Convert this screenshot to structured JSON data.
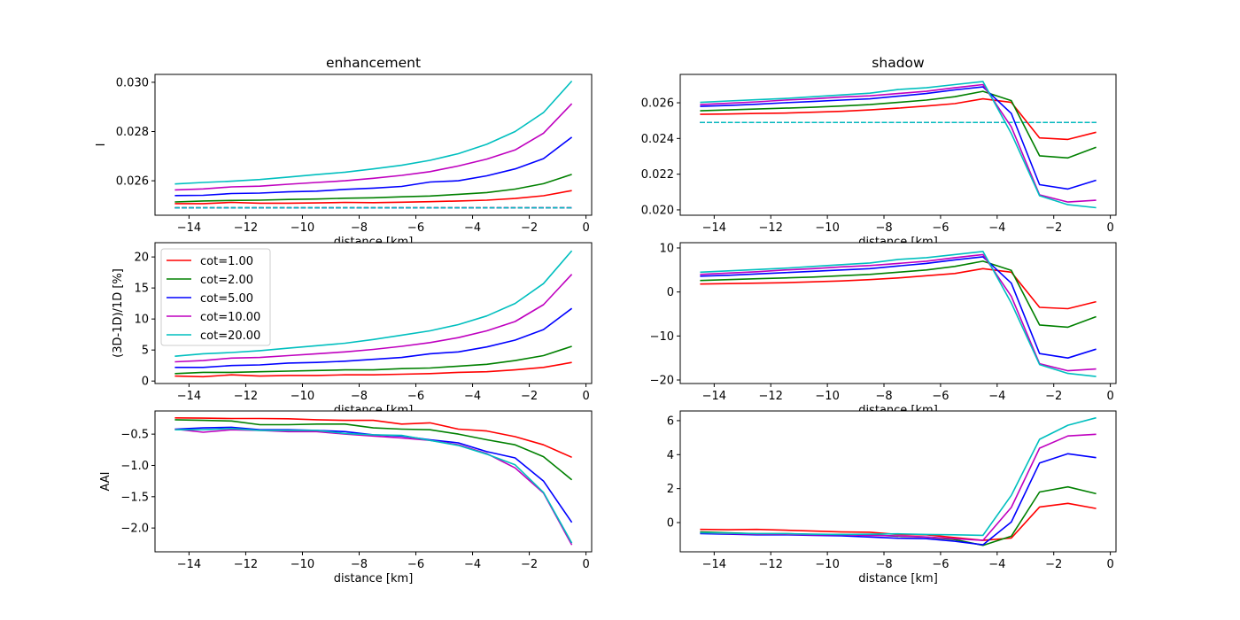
{
  "colors": {
    "cot=1.00": "#ff0000",
    "cot=2.00": "#008000",
    "cot=5.00": "#0000ff",
    "cot=10.00": "#bf00bf",
    "cot=20.00": "#00bfbf"
  },
  "legend": {
    "placement": "upper-left",
    "panel": 2,
    "entries": [
      "cot=1.00",
      "cot=2.00",
      "cot=5.00",
      "cot=10.00",
      "cot=20.00"
    ]
  },
  "chart_data": [
    {
      "type": "line",
      "title": "enhancement",
      "xlabel": "distance [km]",
      "ylabel": "I",
      "xlim": [
        -15.2,
        0.2
      ],
      "ylim": [
        0.0246,
        0.03032
      ],
      "xtick_values": [
        -14,
        -12,
        -10,
        -8,
        -6,
        -4,
        -2,
        0
      ],
      "xtick_labels": [
        "−14",
        "−12",
        "−10",
        "−8",
        "−6",
        "−4",
        "−2",
        "0"
      ],
      "ytick_values": [
        0.026,
        0.028,
        0.03
      ],
      "ytick_labels": [
        "0.026",
        "0.028",
        "0.030"
      ],
      "x": [
        -14.5,
        -13.5,
        -12.5,
        -11.5,
        -10.5,
        -9.5,
        -8.5,
        -7.5,
        -6.5,
        -5.5,
        -4.5,
        -3.5,
        -2.5,
        -1.5,
        -0.5
      ],
      "reference_1d": 0.0249,
      "series": [
        {
          "name": "cot=1.00",
          "values": [
            0.02507,
            0.02507,
            0.02512,
            0.02509,
            0.02509,
            0.0251,
            0.02512,
            0.02511,
            0.02513,
            0.02515,
            0.02518,
            0.02521,
            0.02528,
            0.02539,
            0.0256
          ]
        },
        {
          "name": "cot=2.00",
          "values": [
            0.02514,
            0.02518,
            0.0252,
            0.02521,
            0.02524,
            0.02526,
            0.02529,
            0.02531,
            0.02535,
            0.02538,
            0.02545,
            0.02552,
            0.02566,
            0.02588,
            0.02626
          ]
        },
        {
          "name": "cot=5.00",
          "values": [
            0.0254,
            0.02541,
            0.02548,
            0.0255,
            0.02555,
            0.02558,
            0.02565,
            0.0257,
            0.02577,
            0.02595,
            0.026,
            0.0262,
            0.02648,
            0.0269,
            0.02777
          ]
        },
        {
          "name": "cot=10.00",
          "values": [
            0.02563,
            0.02567,
            0.02575,
            0.02578,
            0.02586,
            0.02593,
            0.026,
            0.0261,
            0.02622,
            0.02637,
            0.0266,
            0.02688,
            0.02725,
            0.02793,
            0.02913
          ]
        },
        {
          "name": "cot=20.00",
          "values": [
            0.02587,
            0.02593,
            0.02598,
            0.02605,
            0.02615,
            0.02625,
            0.02635,
            0.02648,
            0.02663,
            0.02683,
            0.0271,
            0.02748,
            0.028,
            0.02877,
            0.03005
          ]
        }
      ]
    },
    {
      "type": "line",
      "title": "shadow",
      "xlabel": "distance [km]",
      "ylabel": "",
      "xlim": [
        -15.2,
        0.2
      ],
      "ylim": [
        0.0197,
        0.02759
      ],
      "xtick_values": [
        -14,
        -12,
        -10,
        -8,
        -6,
        -4,
        -2,
        0
      ],
      "xtick_labels": [
        "−14",
        "−12",
        "−10",
        "−8",
        "−6",
        "−4",
        "−2",
        "0"
      ],
      "ytick_values": [
        0.02,
        0.022,
        0.024,
        0.026
      ],
      "ytick_labels": [
        "0.020",
        "0.022",
        "0.024",
        "0.026"
      ],
      "x": [
        -14.5,
        -13.5,
        -12.5,
        -11.5,
        -10.5,
        -9.5,
        -8.5,
        -7.5,
        -6.5,
        -5.5,
        -4.5,
        -3.5,
        -2.5,
        -1.5,
        -0.5
      ],
      "reference_1d": 0.0249,
      "series": [
        {
          "name": "cot=1.00",
          "values": [
            0.02535,
            0.02537,
            0.0254,
            0.02542,
            0.02547,
            0.02552,
            0.0256,
            0.0257,
            0.02582,
            0.02595,
            0.02622,
            0.02602,
            0.02403,
            0.02395,
            0.02435
          ]
        },
        {
          "name": "cot=2.00",
          "values": [
            0.02555,
            0.0256,
            0.02565,
            0.0257,
            0.02575,
            0.02582,
            0.0259,
            0.02602,
            0.02615,
            0.02634,
            0.02664,
            0.02612,
            0.02303,
            0.02291,
            0.02351
          ]
        },
        {
          "name": "cot=5.00",
          "values": [
            0.0258,
            0.02585,
            0.02592,
            0.026,
            0.02607,
            0.02615,
            0.02622,
            0.02637,
            0.02652,
            0.02672,
            0.02689,
            0.0254,
            0.02141,
            0.02117,
            0.02166
          ]
        },
        {
          "name": "cot=10.00",
          "values": [
            0.0259,
            0.02597,
            0.02605,
            0.02615,
            0.02622,
            0.02632,
            0.02639,
            0.02652,
            0.02664,
            0.02684,
            0.02702,
            0.02465,
            0.02084,
            0.02044,
            0.02054
          ]
        },
        {
          "name": "cot=20.00",
          "values": [
            0.02602,
            0.0261,
            0.02617,
            0.02624,
            0.02634,
            0.02644,
            0.02654,
            0.02674,
            0.02684,
            0.02702,
            0.02719,
            0.02428,
            0.02079,
            0.02029,
            0.02012
          ]
        }
      ]
    },
    {
      "type": "line",
      "title": "",
      "xlabel": "distance [km]",
      "ylabel": "(3D-1D)/1D [%]",
      "xlim": [
        -15.2,
        0.2
      ],
      "ylim": [
        -0.4,
        22.3
      ],
      "xtick_values": [
        -14,
        -12,
        -10,
        -8,
        -6,
        -4,
        -2,
        0
      ],
      "xtick_labels": [
        "−14",
        "−12",
        "−10",
        "−8",
        "−6",
        "−4",
        "−2",
        "0"
      ],
      "ytick_values": [
        0,
        5,
        10,
        15,
        20
      ],
      "ytick_labels": [
        "0",
        "5",
        "10",
        "15",
        "20"
      ],
      "x": [
        -14.5,
        -13.5,
        -12.5,
        -11.5,
        -10.5,
        -9.5,
        -8.5,
        -7.5,
        -6.5,
        -5.5,
        -4.5,
        -3.5,
        -2.5,
        -1.5,
        -0.5
      ],
      "series": [
        {
          "name": "cot=1.00",
          "values": [
            0.8,
            0.7,
            1.0,
            0.8,
            0.9,
            0.9,
            1.0,
            1.0,
            1.1,
            1.2,
            1.4,
            1.5,
            1.8,
            2.2,
            3.0
          ]
        },
        {
          "name": "cot=2.00",
          "values": [
            1.2,
            1.4,
            1.4,
            1.5,
            1.6,
            1.7,
            1.8,
            1.8,
            2.0,
            2.1,
            2.4,
            2.7,
            3.3,
            4.1,
            5.6
          ]
        },
        {
          "name": "cot=5.00",
          "values": [
            2.2,
            2.2,
            2.5,
            2.6,
            2.9,
            3.0,
            3.2,
            3.5,
            3.8,
            4.4,
            4.7,
            5.5,
            6.6,
            8.3,
            11.7
          ]
        },
        {
          "name": "cot=10.00",
          "values": [
            3.1,
            3.3,
            3.7,
            3.8,
            4.1,
            4.4,
            4.7,
            5.1,
            5.6,
            6.2,
            7.0,
            8.1,
            9.6,
            12.3,
            17.2
          ]
        },
        {
          "name": "cot=20.00",
          "values": [
            4.0,
            4.4,
            4.6,
            4.9,
            5.3,
            5.7,
            6.1,
            6.7,
            7.4,
            8.1,
            9.1,
            10.5,
            12.5,
            15.7,
            21.0
          ]
        }
      ]
    },
    {
      "type": "line",
      "title": "",
      "xlabel": "distance [km]",
      "ylabel": "",
      "xlim": [
        -15.2,
        0.2
      ],
      "ylim": [
        -20.8,
        11.2
      ],
      "xtick_values": [
        -14,
        -12,
        -10,
        -8,
        -6,
        -4,
        -2,
        0
      ],
      "xtick_labels": [
        "−14",
        "−12",
        "−10",
        "−8",
        "−6",
        "−4",
        "−2",
        "0"
      ],
      "ytick_values": [
        -20,
        -10,
        0,
        10
      ],
      "ytick_labels": [
        "−20",
        "−10",
        "0",
        "10"
      ],
      "x": [
        -14.5,
        -13.5,
        -12.5,
        -11.5,
        -10.5,
        -9.5,
        -8.5,
        -7.5,
        -6.5,
        -5.5,
        -4.5,
        -3.5,
        -2.5,
        -1.5,
        -0.5
      ],
      "series": [
        {
          "name": "cot=1.00",
          "values": [
            1.8,
            1.9,
            2.0,
            2.1,
            2.3,
            2.5,
            2.8,
            3.2,
            3.7,
            4.2,
            5.3,
            4.5,
            -3.5,
            -3.8,
            -2.2
          ]
        },
        {
          "name": "cot=2.00",
          "values": [
            2.6,
            2.8,
            3.0,
            3.2,
            3.4,
            3.7,
            4.0,
            4.5,
            5.0,
            5.8,
            7.0,
            4.9,
            -7.5,
            -8.0,
            -5.6
          ]
        },
        {
          "name": "cot=5.00",
          "values": [
            3.6,
            3.8,
            4.1,
            4.4,
            4.7,
            5.0,
            5.3,
            5.9,
            6.5,
            7.3,
            8.0,
            2.0,
            -14.0,
            -15.0,
            -13.0
          ]
        },
        {
          "name": "cot=10.00",
          "values": [
            4.0,
            4.3,
            4.6,
            5.0,
            5.3,
            5.7,
            6.0,
            6.5,
            7.0,
            7.8,
            8.5,
            -1.0,
            -16.3,
            -17.9,
            -17.5
          ]
        },
        {
          "name": "cot=20.00",
          "values": [
            4.5,
            4.8,
            5.1,
            5.4,
            5.8,
            6.2,
            6.6,
            7.4,
            7.8,
            8.5,
            9.2,
            -2.5,
            -16.5,
            -18.5,
            -19.2
          ]
        }
      ]
    },
    {
      "type": "line",
      "title": "",
      "xlabel": "distance [km]",
      "ylabel": "AAI",
      "xlim": [
        -15.2,
        0.2
      ],
      "ylim": [
        -2.38,
        -0.13
      ],
      "xtick_values": [
        -14,
        -12,
        -10,
        -8,
        -6,
        -4,
        -2,
        0
      ],
      "xtick_labels": [
        "−14",
        "−12",
        "−10",
        "−8",
        "−6",
        "−4",
        "−2",
        "0"
      ],
      "ytick_values": [
        -2.0,
        -1.5,
        -1.0,
        -0.5
      ],
      "ytick_labels": [
        "−2.0",
        "−1.5",
        "−1.0",
        "−0.5"
      ],
      "x": [
        -14.5,
        -13.5,
        -12.5,
        -11.5,
        -10.5,
        -9.5,
        -8.5,
        -7.5,
        -6.5,
        -5.5,
        -4.5,
        -3.5,
        -2.5,
        -1.5,
        -0.5
      ],
      "series": [
        {
          "name": "cot=1.00",
          "values": [
            -0.24,
            -0.245,
            -0.25,
            -0.25,
            -0.255,
            -0.27,
            -0.28,
            -0.28,
            -0.34,
            -0.32,
            -0.42,
            -0.45,
            -0.54,
            -0.67,
            -0.87
          ]
        },
        {
          "name": "cot=2.00",
          "values": [
            -0.27,
            -0.28,
            -0.29,
            -0.35,
            -0.35,
            -0.34,
            -0.34,
            -0.4,
            -0.42,
            -0.43,
            -0.5,
            -0.59,
            -0.67,
            -0.86,
            -1.23
          ]
        },
        {
          "name": "cot=5.00",
          "values": [
            -0.42,
            -0.4,
            -0.39,
            -0.43,
            -0.43,
            -0.44,
            -0.46,
            -0.51,
            -0.53,
            -0.59,
            -0.64,
            -0.78,
            -0.88,
            -1.25,
            -1.91
          ]
        },
        {
          "name": "cot=10.00",
          "values": [
            -0.42,
            -0.47,
            -0.43,
            -0.44,
            -0.46,
            -0.46,
            -0.5,
            -0.53,
            -0.56,
            -0.6,
            -0.67,
            -0.81,
            -1.04,
            -1.44,
            -2.27
          ]
        },
        {
          "name": "cot=20.00",
          "values": [
            -0.43,
            -0.43,
            -0.41,
            -0.44,
            -0.44,
            -0.44,
            -0.49,
            -0.51,
            -0.52,
            -0.6,
            -0.68,
            -0.82,
            -0.99,
            -1.43,
            -2.24
          ]
        }
      ]
    },
    {
      "type": "line",
      "title": "",
      "xlabel": "distance [km]",
      "ylabel": "",
      "xlim": [
        -15.2,
        0.2
      ],
      "ylim": [
        -1.72,
        6.57
      ],
      "xtick_values": [
        -14,
        -12,
        -10,
        -8,
        -6,
        -4,
        -2,
        0
      ],
      "xtick_labels": [
        "−14",
        "−12",
        "−10",
        "−8",
        "−6",
        "−4",
        "−2",
        "0"
      ],
      "ytick_values": [
        0,
        2,
        4,
        6
      ],
      "ytick_labels": [
        "0",
        "2",
        "4",
        "6"
      ],
      "x": [
        -14.5,
        -13.5,
        -12.5,
        -11.5,
        -10.5,
        -9.5,
        -8.5,
        -7.5,
        -6.5,
        -5.5,
        -4.5,
        -3.5,
        -2.5,
        -1.5,
        -0.5
      ],
      "series": [
        {
          "name": "cot=1.00",
          "values": [
            -0.4,
            -0.42,
            -0.4,
            -0.45,
            -0.5,
            -0.55,
            -0.57,
            -0.7,
            -0.72,
            -0.88,
            -1.05,
            -0.91,
            0.92,
            1.13,
            0.83
          ]
        },
        {
          "name": "cot=2.00",
          "values": [
            -0.55,
            -0.6,
            -0.65,
            -0.65,
            -0.7,
            -0.7,
            -0.72,
            -0.8,
            -0.85,
            -1.0,
            -1.34,
            -0.8,
            1.8,
            2.1,
            1.7
          ]
        },
        {
          "name": "cot=5.00",
          "values": [
            -0.65,
            -0.68,
            -0.72,
            -0.72,
            -0.75,
            -0.78,
            -0.85,
            -0.92,
            -0.95,
            -1.1,
            -1.31,
            0.03,
            3.51,
            4.05,
            3.82
          ]
        },
        {
          "name": "cot=10.00",
          "values": [
            -0.6,
            -0.65,
            -0.68,
            -0.68,
            -0.72,
            -0.72,
            -0.75,
            -0.78,
            -0.85,
            -0.95,
            -1.05,
            0.89,
            4.38,
            5.1,
            5.2
          ]
        },
        {
          "name": "cot=20.00",
          "values": [
            -0.6,
            -0.62,
            -0.65,
            -0.65,
            -0.68,
            -0.7,
            -0.68,
            -0.66,
            -0.7,
            -0.72,
            -0.75,
            1.6,
            4.9,
            5.73,
            6.17
          ]
        }
      ]
    }
  ]
}
